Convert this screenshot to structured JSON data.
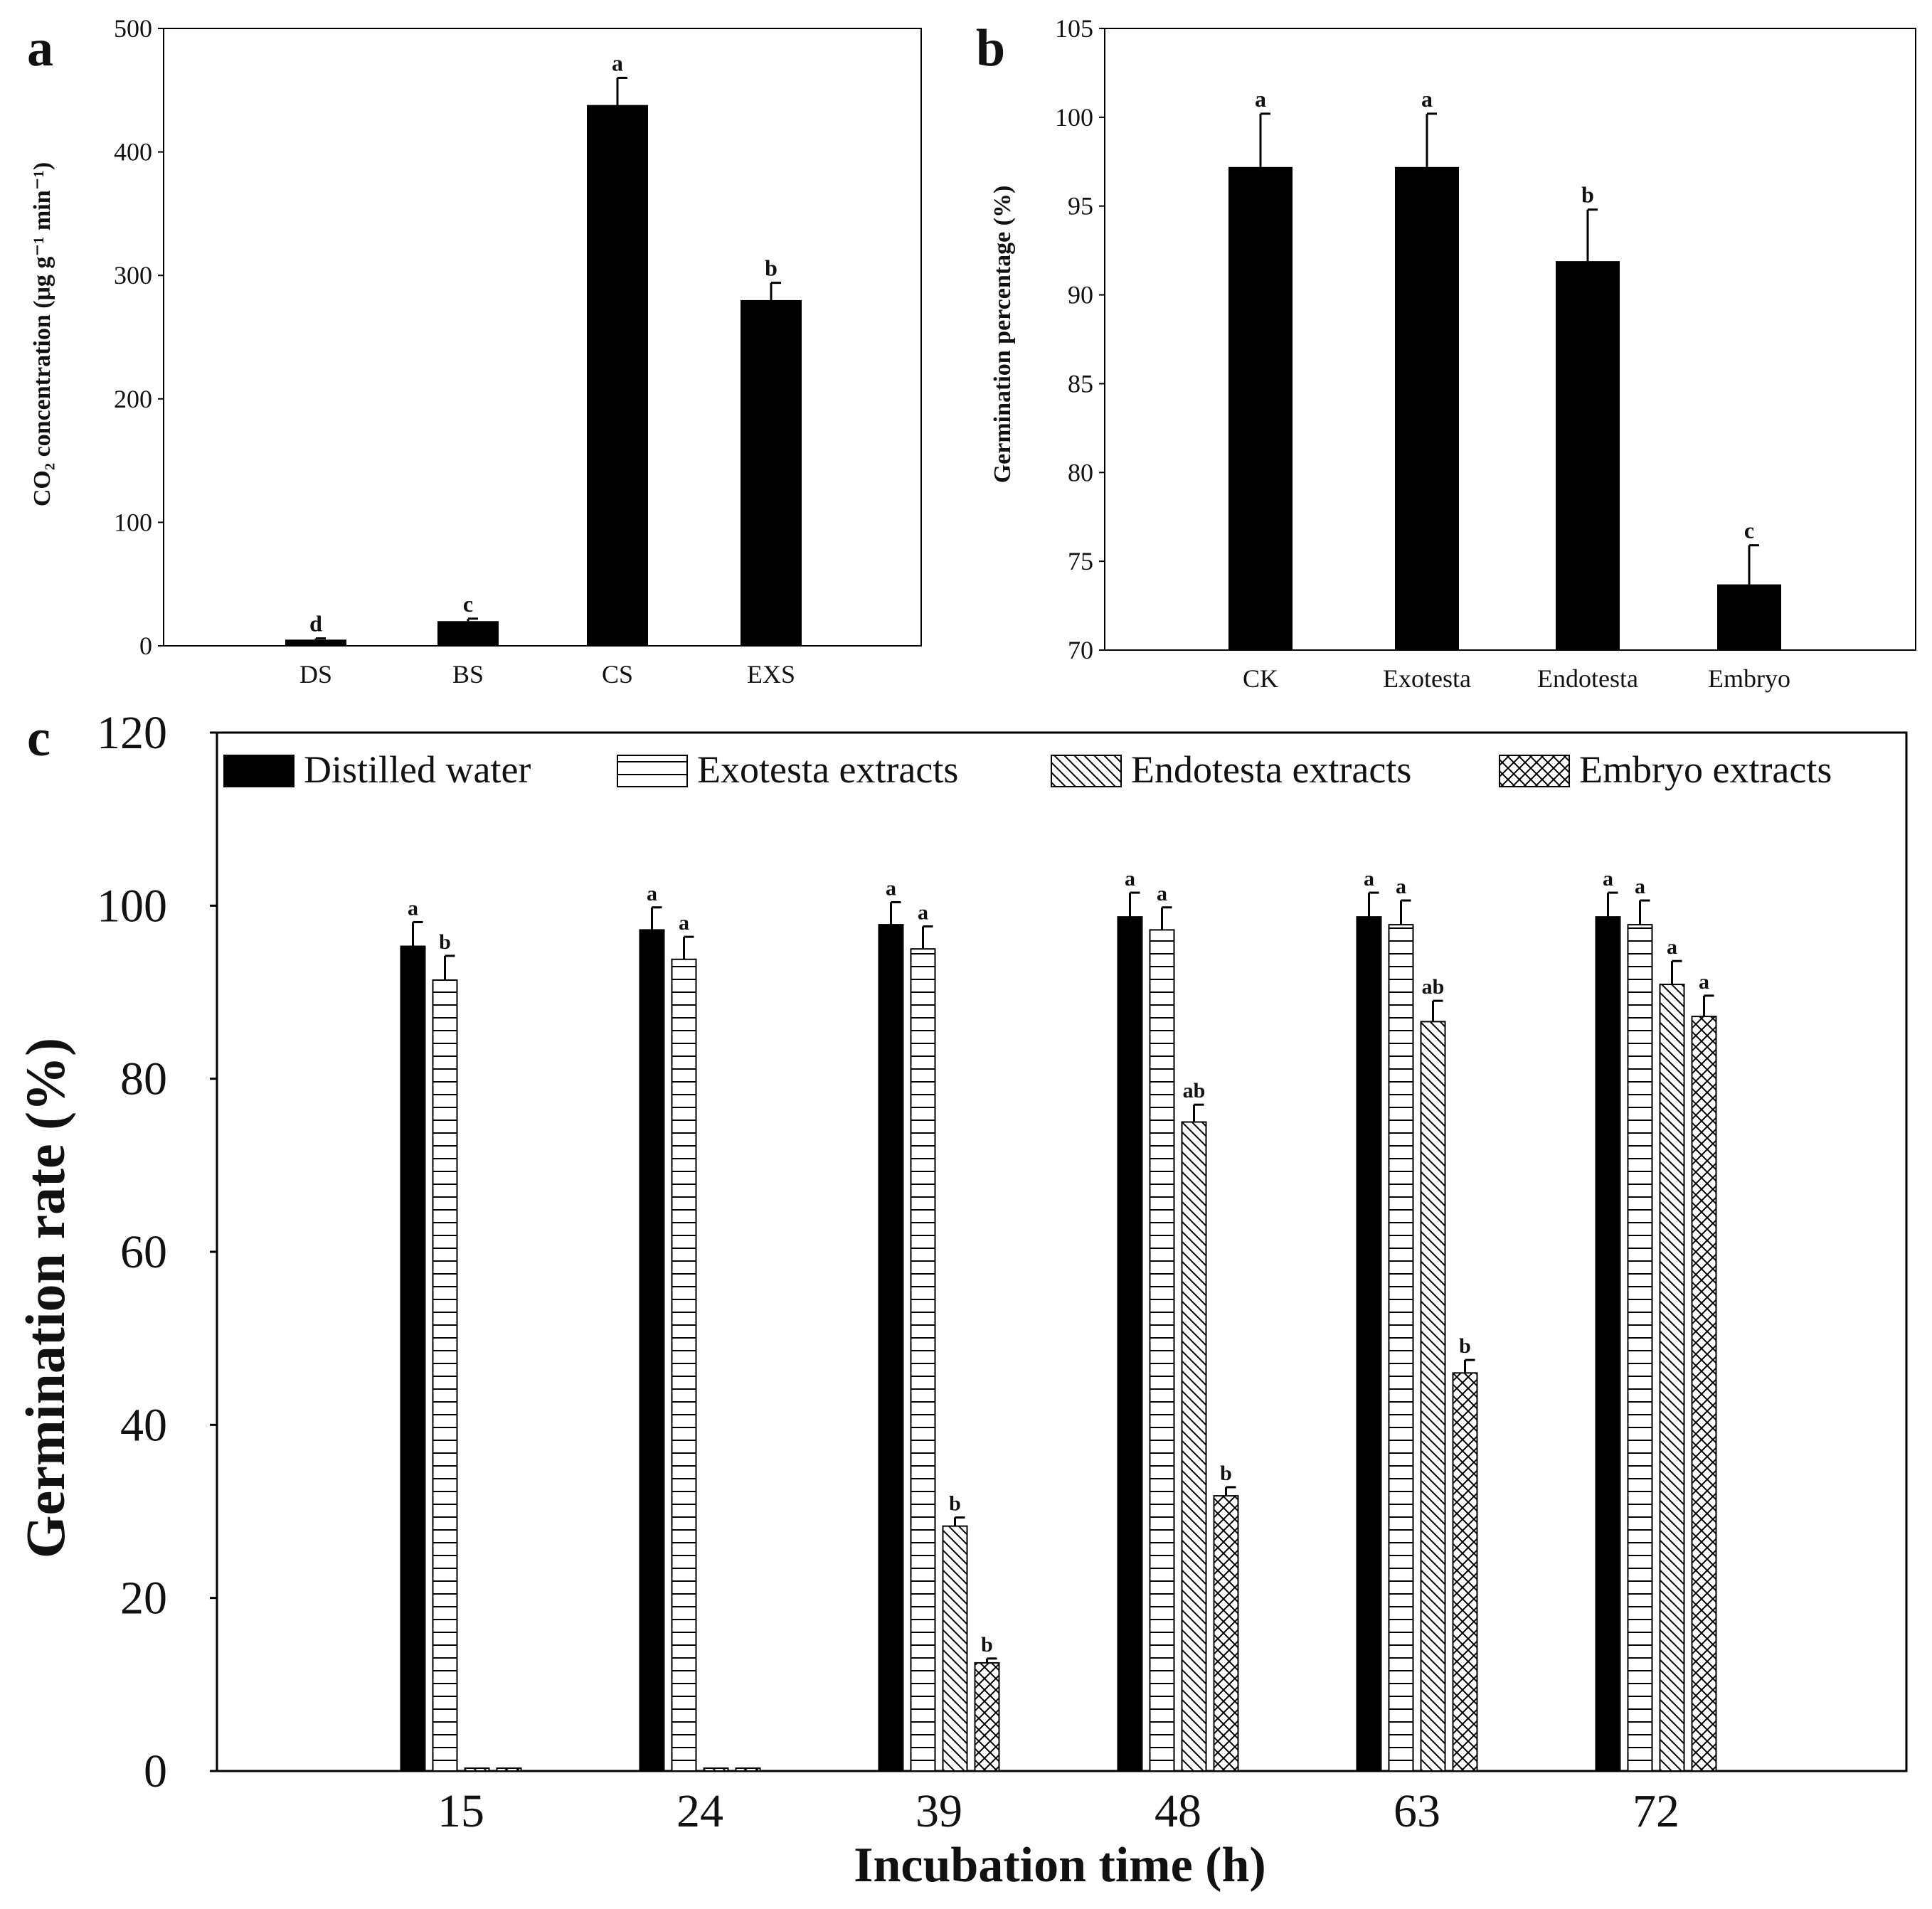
{
  "colors": {
    "ink": "#000000",
    "background": "#ffffff"
  },
  "chart_data": [
    {
      "panel": "a",
      "type": "bar",
      "title": "",
      "categories": [
        "DS",
        "BS",
        "CS",
        "EXS"
      ],
      "values": [
        5,
        20,
        438,
        280
      ],
      "errors": [
        1,
        2,
        22,
        14
      ],
      "sig_letters": [
        "d",
        "c",
        "a",
        "b"
      ],
      "xlabel": "",
      "ylabel": "CO₂ concentration (μg g⁻¹ min⁻¹)",
      "ylim": [
        0,
        500
      ],
      "yticks": [
        0,
        100,
        200,
        300,
        400,
        500
      ]
    },
    {
      "panel": "b",
      "type": "bar",
      "title": "",
      "categories": [
        "CK",
        "Exotesta",
        "Endotesta",
        "Embryo"
      ],
      "values": [
        97.2,
        97.2,
        91.9,
        73.7
      ],
      "errors": [
        3.0,
        3.0,
        2.9,
        2.2
      ],
      "sig_letters": [
        "a",
        "a",
        "b",
        "c"
      ],
      "xlabel": "",
      "ylabel": "Germination percentage (%)",
      "ylim": [
        70,
        105
      ],
      "yticks": [
        70,
        75,
        80,
        85,
        90,
        95,
        100,
        105
      ]
    },
    {
      "panel": "c",
      "type": "bar",
      "title": "",
      "categories": [
        "15",
        "24",
        "39",
        "48",
        "63",
        "72"
      ],
      "series": [
        {
          "name": "Distilled water",
          "pattern": "solid",
          "values": [
            95.3,
            97.2,
            97.8,
            98.7,
            98.7,
            98.7
          ],
          "errors": [
            2.8,
            2.6,
            2.6,
            2.8,
            2.8,
            2.8
          ],
          "sig_letters": [
            "a",
            "a",
            "a",
            "a",
            "a",
            "a"
          ]
        },
        {
          "name": "Exotesta extracts",
          "pattern": "horizontal",
          "values": [
            91.4,
            93.8,
            95.0,
            97.2,
            97.8,
            97.8
          ],
          "errors": [
            2.8,
            2.6,
            2.6,
            2.6,
            2.8,
            2.8
          ],
          "sig_letters": [
            "b",
            "a",
            "a",
            "a",
            "a",
            "a"
          ]
        },
        {
          "name": "Endotesta extracts",
          "pattern": "diagonal",
          "values": [
            0,
            0,
            28.3,
            75.0,
            86.6,
            90.9
          ],
          "errors": [
            0,
            0,
            1.0,
            2.0,
            2.4,
            2.7
          ],
          "sig_letters": [
            "",
            "",
            "b",
            "ab",
            "ab",
            "a"
          ]
        },
        {
          "name": "Embryo extracts",
          "pattern": "crosshatch",
          "values": [
            0,
            0,
            12.5,
            31.8,
            46.0,
            87.2
          ],
          "errors": [
            0,
            0,
            0.5,
            1.0,
            1.5,
            2.4
          ],
          "sig_letters": [
            "",
            "",
            "b",
            "b",
            "b",
            "a"
          ]
        }
      ],
      "xlabel": "Incubation time (h)",
      "ylabel": "Germination rate (%)",
      "ylim": [
        0,
        120
      ],
      "yticks": [
        0,
        20,
        40,
        60,
        80,
        100,
        120
      ],
      "legend": "top"
    }
  ]
}
